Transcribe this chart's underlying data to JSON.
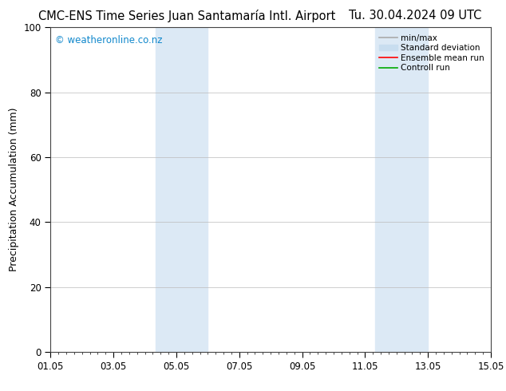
{
  "title_left": "CMC-ENS Time Series Juan Santamaría Intl. Airport",
  "title_right": "Tu. 30.04.2024 09 UTC",
  "ylabel": "Precipitation Accumulation (mm)",
  "ylim": [
    0,
    100
  ],
  "yticks": [
    0,
    20,
    40,
    60,
    80,
    100
  ],
  "xmin": 0,
  "xmax": 14,
  "xtick_labels": [
    "01.05",
    "03.05",
    "05.05",
    "07.05",
    "09.05",
    "11.05",
    "13.05",
    "15.05"
  ],
  "xtick_positions": [
    0,
    2,
    4,
    6,
    8,
    10,
    12,
    14
  ],
  "shaded_bands": [
    {
      "xmin": 3.33,
      "xmax": 5.0,
      "color": "#dce9f5"
    },
    {
      "xmin": 10.33,
      "xmax": 12.0,
      "color": "#dce9f5"
    }
  ],
  "watermark": "© weatheronline.co.nz",
  "watermark_color": "#1188cc",
  "legend_items": [
    {
      "label": "min/max",
      "color": "#aaaaaa",
      "lw": 1.2
    },
    {
      "label": "Standard deviation",
      "color": "#c8ddef",
      "lw": 7
    },
    {
      "label": "Ensemble mean run",
      "color": "#ff0000",
      "lw": 1.2
    },
    {
      "label": "Controll run",
      "color": "#00aa00",
      "lw": 1.2
    }
  ],
  "bg_color": "#ffffff",
  "plot_bg_color": "#ffffff",
  "grid_color": "#bbbbbb",
  "title_fontsize": 10.5,
  "ylabel_fontsize": 9,
  "tick_fontsize": 8.5,
  "watermark_fontsize": 8.5,
  "legend_fontsize": 7.5
}
